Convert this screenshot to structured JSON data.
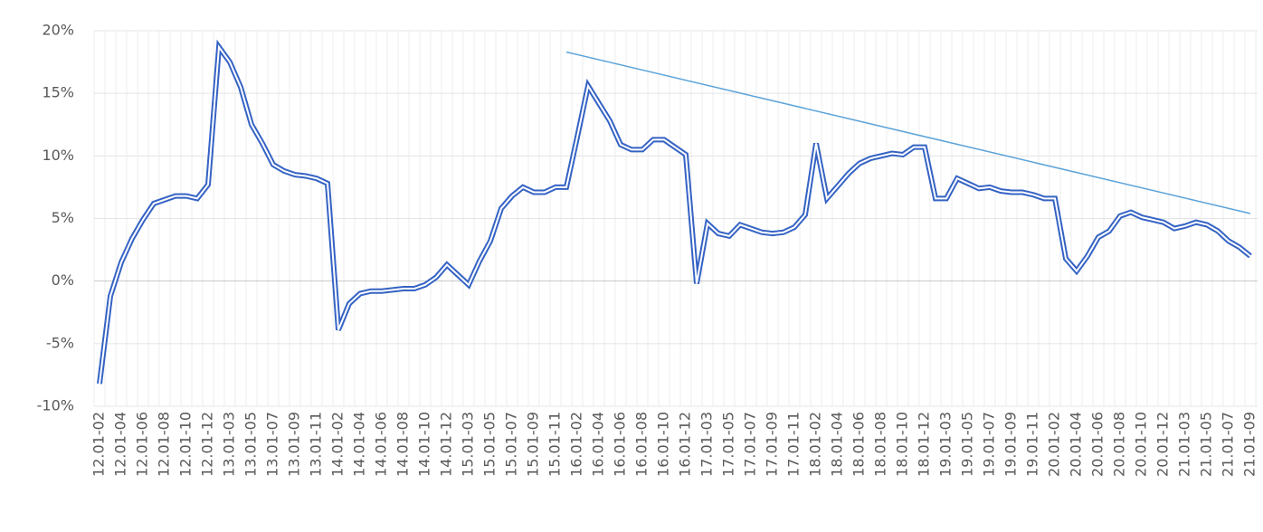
{
  "chart_data": {
    "type": "line",
    "categories": [
      "12.01-02",
      null,
      "12.01-04",
      null,
      "12.01-06",
      null,
      "12.01-08",
      null,
      "12.01-10",
      null,
      "12.01-12",
      null,
      "13.01-03",
      null,
      "13.01-05",
      null,
      "13.01-07",
      null,
      "13.01-09",
      null,
      "13.01-11",
      null,
      "14.01-02",
      null,
      "14.01-04",
      null,
      "14.01-06",
      null,
      "14.01-08",
      null,
      "14.01-10",
      null,
      "14.01-12",
      null,
      "15.01-03",
      null,
      "15.01-05",
      null,
      "15.01-07",
      null,
      "15.01-09",
      null,
      "15.01-11",
      null,
      "16.01-02",
      null,
      "16.01-04",
      null,
      "16.01-06",
      null,
      "16.01-08",
      null,
      "16.01-10",
      null,
      "16.01-12",
      null,
      "17.01-03",
      null,
      "17.01-05",
      null,
      "17.01-07",
      null,
      "17.01-09",
      null,
      "17.01-11",
      null,
      "18.01-02",
      null,
      "18.01-04",
      null,
      "18.01-06",
      null,
      "18.01-08",
      null,
      "18.01-10",
      null,
      "18.01-12",
      null,
      "19.01-03",
      null,
      "19.01-05",
      null,
      "19.01-07",
      null,
      "19.01-09",
      null,
      "19.01-11",
      null,
      "20.01-02",
      null,
      "20.01-04",
      null,
      "20.01-06",
      null,
      "20.01-08",
      null,
      "20.01-10",
      null,
      "20.01-12",
      null,
      "21.01-03",
      null,
      "21.01-05",
      null,
      "21.01-07",
      null,
      "21.01-09"
    ],
    "series": [
      {
        "color": "#3563c4",
        "values": [
          -8.2,
          -1.2,
          1.5,
          3.4,
          4.9,
          6.2,
          6.5,
          6.8,
          6.8,
          6.6,
          7.7,
          18.7,
          17.5,
          15.5,
          12.5,
          11,
          9.3,
          8.8,
          8.5,
          8.4,
          8.2,
          7.8,
          -3.9,
          -1.8,
          -1,
          -0.8,
          -0.8,
          -0.7,
          -0.6,
          -0.6,
          -0.3,
          0.3,
          1.3,
          0.5,
          -0.3,
          1.6,
          3.2,
          5.8,
          6.8,
          7.5,
          7.1,
          7.1,
          7.5,
          7.5,
          11.5,
          15.6,
          14.2,
          12.8,
          10.9,
          10.5,
          10.5,
          11.3,
          11.3,
          10.7,
          10.1,
          -0.2,
          4.6,
          3.8,
          3.6,
          4.5,
          4.2,
          3.9,
          3.8,
          3.9,
          4.3,
          5.3,
          11,
          6.6,
          7.6,
          8.6,
          9.4,
          9.8,
          10,
          10.2,
          10.1,
          10.7,
          10.7,
          6.6,
          6.6,
          8.2,
          7.8,
          7.4,
          7.5,
          7.2,
          7.1,
          7.1,
          6.9,
          6.6,
          6.6,
          1.8,
          0.8,
          2,
          3.5,
          4,
          5.2,
          5.5,
          5.1,
          4.9,
          4.7,
          4.2,
          4.4,
          4.7,
          4.5,
          4,
          3.2,
          2.7,
          2
        ]
      }
    ],
    "trendline": {
      "color": "#5ba3d9",
      "from": {
        "index": 43,
        "value": 18.3
      },
      "to": {
        "index": 106,
        "value": 5.4
      }
    },
    "ylim": [
      -10,
      20
    ],
    "yticks": [
      {
        "value": -10,
        "label": "-10%"
      },
      {
        "value": -5,
        "label": "-5%"
      },
      {
        "value": 0,
        "label": "0%"
      },
      {
        "value": 5,
        "label": "5%"
      },
      {
        "value": 10,
        "label": "10%"
      },
      {
        "value": 15,
        "label": "15%"
      },
      {
        "value": 20,
        "label": "20%"
      }
    ],
    "grid": true
  }
}
